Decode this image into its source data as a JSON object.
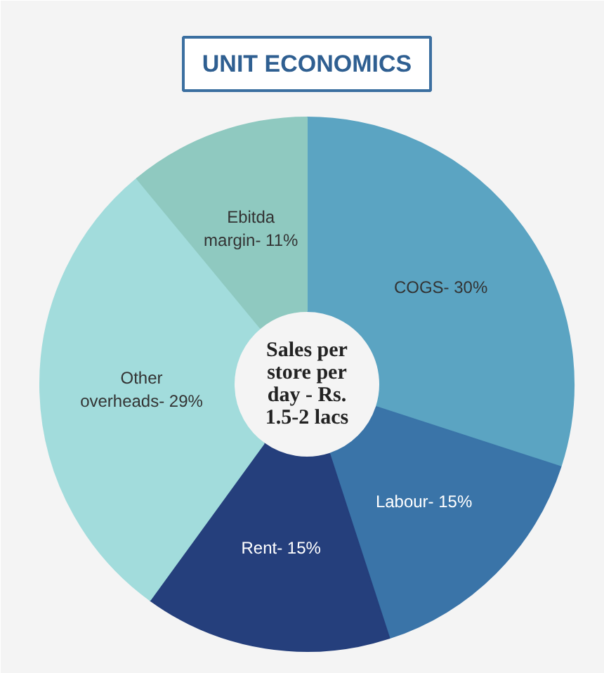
{
  "chart_data": {
    "type": "donut",
    "title": "UNIT ECONOMICS",
    "categories": [
      "COGS- 30%",
      "Labour- 15%",
      "Rent- 15%",
      "Other\noverheads- 29%",
      "Ebitda\nmargin- 11%"
    ],
    "values": [
      30,
      15,
      15,
      29,
      11
    ],
    "colors": [
      "#5ba4c2",
      "#3a74a8",
      "#253f7c",
      "#a2dcdc",
      "#8fc9c0"
    ],
    "annotations": [
      "Sales per\nstore per\nday - Rs.\n1.5-2 lacs"
    ]
  }
}
